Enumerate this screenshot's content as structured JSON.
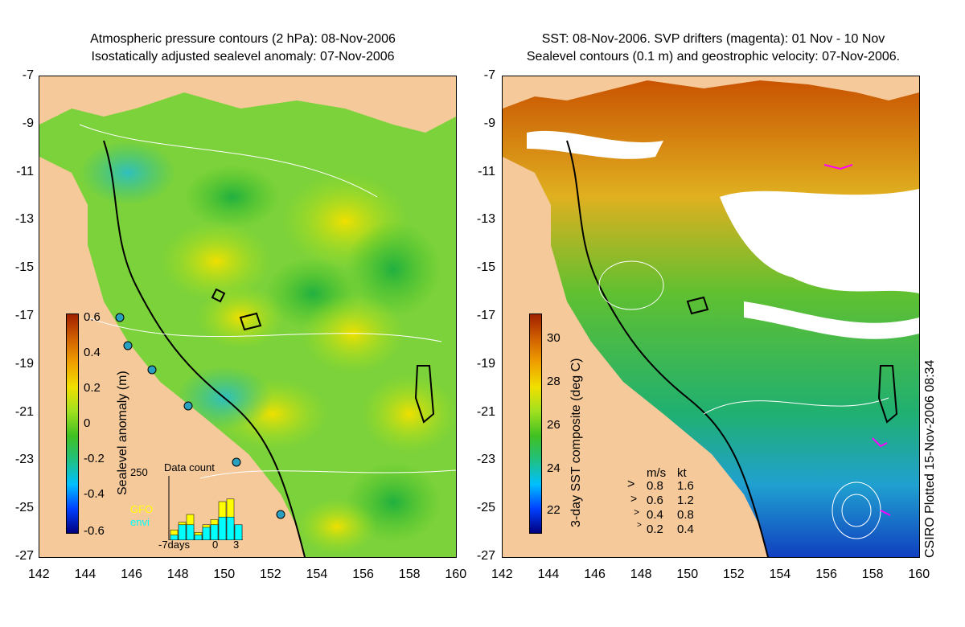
{
  "left_panel": {
    "title_line1": "Atmospheric pressure contours (2 hPa): 08-Nov-2006",
    "title_line2": "Isostatically adjusted sealevel anomaly: 07-Nov-2006",
    "colorbar_label": "Sealevel anomaly (m)",
    "colorbar_ticks": [
      "0.6",
      "0.4",
      "0.2",
      "0",
      "-0.2",
      "-0.4",
      "-0.6"
    ],
    "inset": {
      "title": "Data count",
      "ymax_label": "250",
      "legend_gfo": "GFO",
      "legend_envi": "envi",
      "xlabel_left": "-7days",
      "xlabel_mid": "0",
      "xlabel_right": "3",
      "gfo_color": "#ffff00",
      "envi_color": "#00ffff",
      "gfo_counts": [
        40,
        70,
        100,
        30,
        60,
        80,
        150,
        160,
        60
      ],
      "envi_counts": [
        20,
        60,
        60,
        20,
        50,
        60,
        90,
        90,
        60
      ]
    }
  },
  "right_panel": {
    "title_line1": "SST: 08-Nov-2006. SVP drifters (magenta): 01 Nov - 10 Nov",
    "title_line2": "Sealevel contours (0.1 m) and geostrophic velocity: 07-Nov-2006.",
    "colorbar_label": "3-day SST composite (deg C)",
    "colorbar_ticks": [
      "30",
      "28",
      "26",
      "24",
      "22"
    ],
    "velocity_legend": {
      "header_ms": "m/s",
      "header_kt": "kt",
      "rows": [
        {
          "ms": "0.8",
          "kt": "1.6"
        },
        {
          "ms": "0.6",
          "kt": "1.2"
        },
        {
          "ms": "0.4",
          "kt": "0.8"
        },
        {
          "ms": "0.2",
          "kt": "0.4"
        }
      ]
    },
    "credit": "CSIRO Plotted 15-Nov-2006 08:34"
  },
  "axes": {
    "x_ticks": [
      "142",
      "144",
      "146",
      "148",
      "150",
      "152",
      "154",
      "156",
      "158",
      "160"
    ],
    "y_ticks": [
      "-7",
      "-9",
      "-11",
      "-13",
      "-15",
      "-17",
      "-19",
      "-21",
      "-23",
      "-25",
      "-27"
    ]
  },
  "colors": {
    "land": "#f5c99a",
    "anomaly_ramp": [
      "#000080",
      "#0040ff",
      "#00c0ff",
      "#20c080",
      "#40c020",
      "#a0e020",
      "#f0e000",
      "#f0a000",
      "#d06000",
      "#a02000"
    ],
    "sst_ramp": [
      "#000080",
      "#0040ff",
      "#00c0ff",
      "#20c080",
      "#40c020",
      "#a0e020",
      "#f0e000",
      "#f0a000",
      "#d06000",
      "#a02000"
    ]
  }
}
